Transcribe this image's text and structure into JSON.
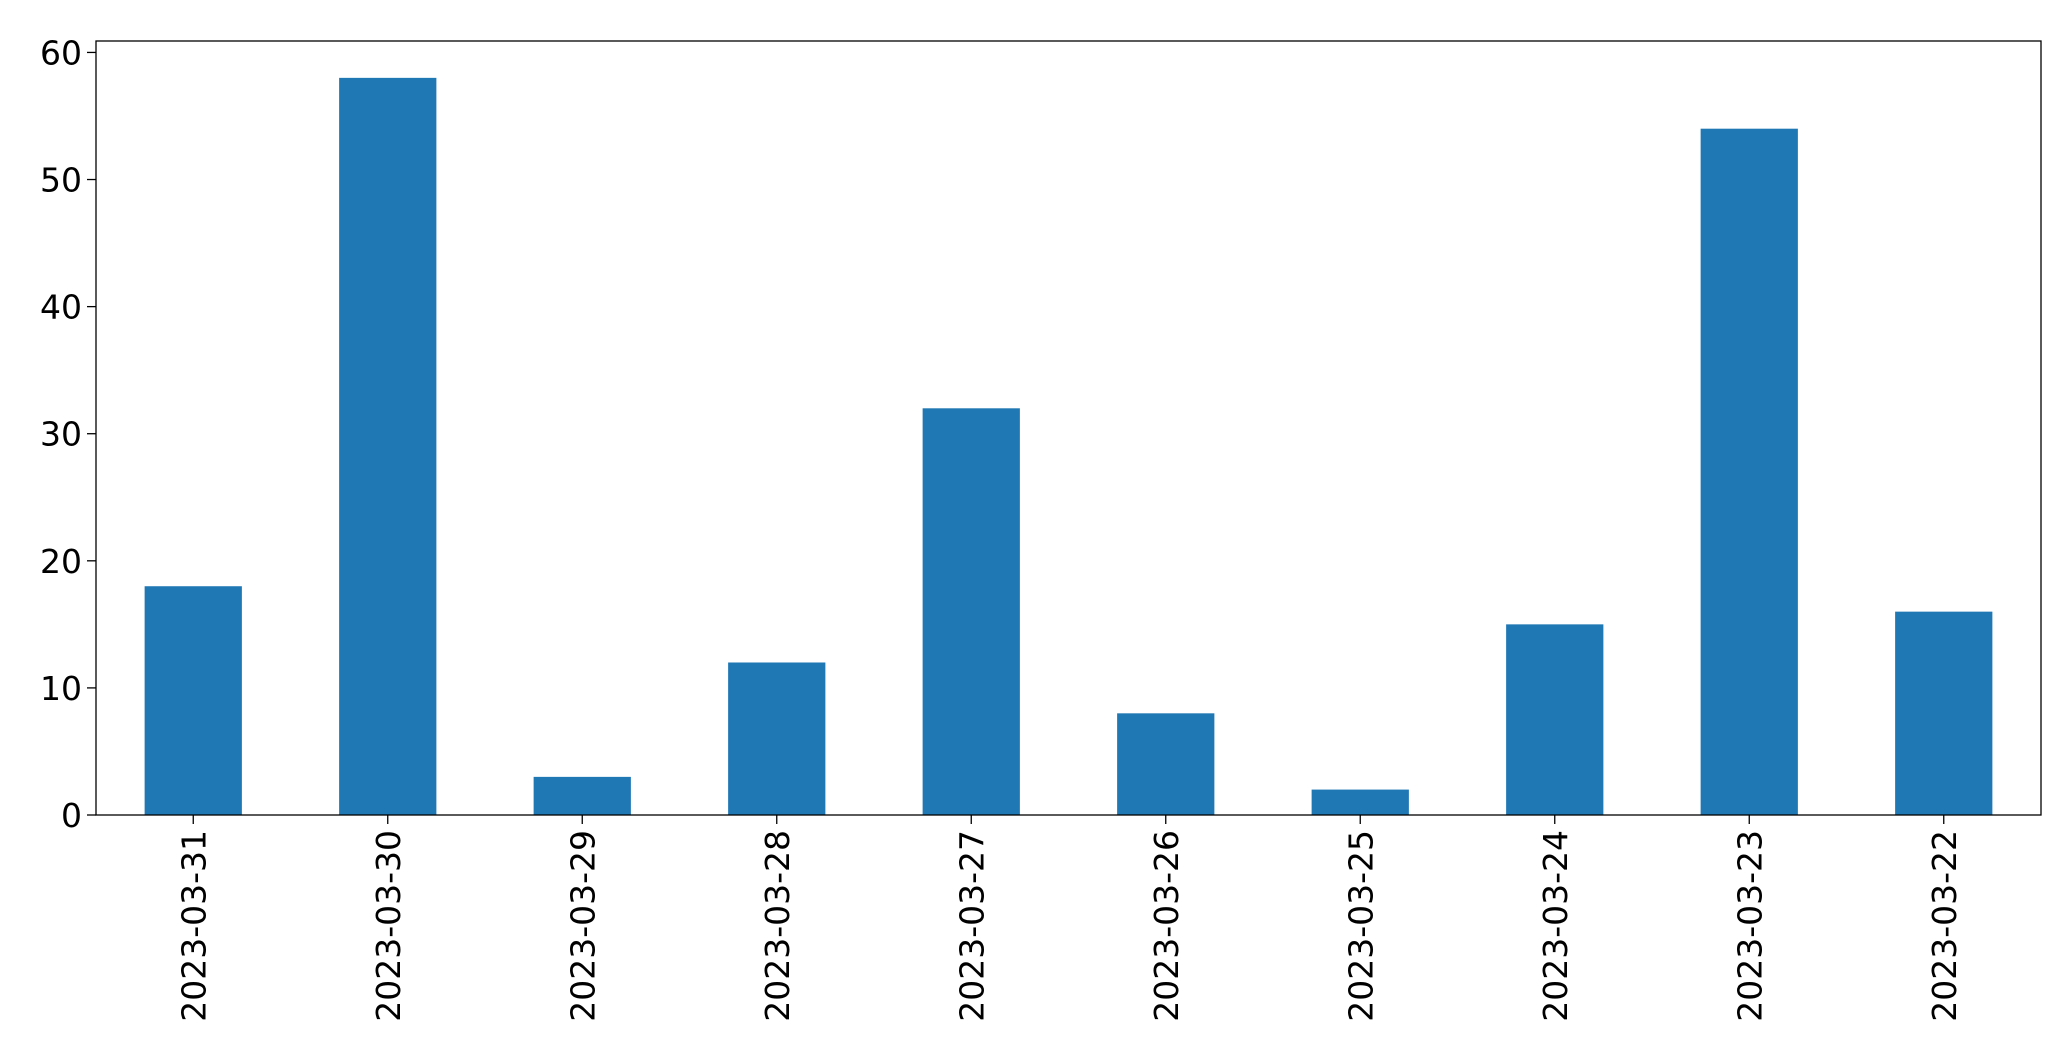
{
  "chart_data": {
    "type": "bar",
    "categories": [
      "2023-03-31",
      "2023-03-30",
      "2023-03-29",
      "2023-03-28",
      "2023-03-27",
      "2023-03-26",
      "2023-03-25",
      "2023-03-24",
      "2023-03-23",
      "2023-03-22"
    ],
    "values": [
      18,
      58,
      3,
      12,
      32,
      8,
      2,
      15,
      54,
      16
    ],
    "color": "#1f77b4",
    "ylim": [
      0,
      60.9
    ],
    "yticks": [
      0,
      10,
      20,
      30,
      40,
      50,
      60
    ],
    "grid": false
  }
}
